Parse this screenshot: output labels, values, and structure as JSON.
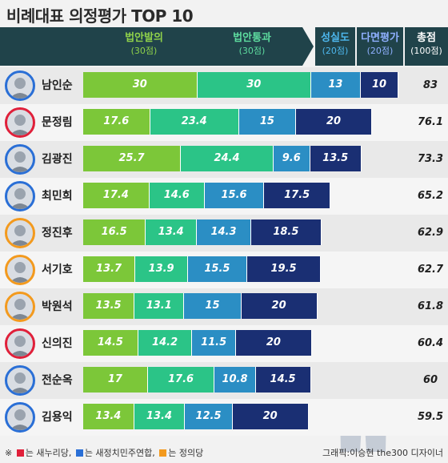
{
  "title": "비례대표 의정평가 TOP 10",
  "colors": {
    "header_dark": "#20434a",
    "c1": "#7cc739",
    "c2": "#2bc487",
    "c3": "#2b8ec4",
    "c4": "#1a2f73",
    "c1_text": "#8fd14a",
    "c2_text": "#5ddc9f",
    "c3_text": "#4db7ee",
    "c4_text": "#8fb0ff",
    "saenuri": "#e0203a",
    "npad": "#2a6fd6",
    "justice": "#f39a1e"
  },
  "chart_data": {
    "type": "bar",
    "stacked": true,
    "orientation": "horizontal",
    "title": "비례대표 의정평가 TOP 10",
    "columns": [
      {
        "key": "c1",
        "label": "법안발의",
        "sub": "(30점)",
        "max": 30
      },
      {
        "key": "c2",
        "label": "법안통과",
        "sub": "(30점)",
        "max": 30
      },
      {
        "key": "c3",
        "label": "성실도",
        "sub": "(20점)",
        "max": 20
      },
      {
        "key": "c4",
        "label": "다면평가",
        "sub": "(20점)",
        "max": 20
      }
    ],
    "total_label": "총점",
    "total_sub": "(100점)",
    "categories": [
      "남인순",
      "문정림",
      "김광진",
      "최민희",
      "정진후",
      "서기호",
      "박원석",
      "신의진",
      "전순옥",
      "김용익"
    ],
    "series": [
      {
        "name": "법안발의",
        "values": [
          30,
          17.6,
          25.7,
          17.4,
          16.5,
          13.7,
          13.5,
          14.5,
          17,
          13.4
        ]
      },
      {
        "name": "법안통과",
        "values": [
          30,
          23.4,
          24.4,
          14.6,
          13.4,
          13.9,
          13.1,
          14.2,
          17.6,
          13.4
        ]
      },
      {
        "name": "성실도",
        "values": [
          13,
          15,
          9.6,
          15.6,
          14.3,
          15.5,
          15,
          11.5,
          10.8,
          12.5
        ]
      },
      {
        "name": "다면평가",
        "values": [
          10,
          20,
          13.5,
          17.5,
          18.5,
          19.5,
          20,
          20,
          14.5,
          20
        ]
      }
    ],
    "totals": [
      "83",
      "76.1",
      "73.3",
      "65.2",
      "62.9",
      "62.7",
      "61.8",
      "60.4",
      "60",
      "59.5"
    ],
    "labels": [
      [
        "30",
        "30",
        "13",
        "10"
      ],
      [
        "17.6",
        "23.4",
        "15",
        "20"
      ],
      [
        "25.7",
        "24.4",
        "9.6",
        "13.5"
      ],
      [
        "17.4",
        "14.6",
        "15.6",
        "17.5"
      ],
      [
        "16.5",
        "13.4",
        "14.3",
        "18.5"
      ],
      [
        "13.7",
        "13.9",
        "15.5",
        "19.5"
      ],
      [
        "13.5",
        "13.1",
        "15",
        "20"
      ],
      [
        "14.5",
        "14.2",
        "11.5",
        "20"
      ],
      [
        "17",
        "17.6",
        "10.8",
        "14.5"
      ],
      [
        "13.4",
        "13.4",
        "12.5",
        "20"
      ]
    ],
    "party": [
      "npad",
      "saenuri",
      "npad",
      "npad",
      "justice",
      "justice",
      "justice",
      "saenuri",
      "npad",
      "npad"
    ]
  },
  "footer": {
    "note_prefix": "※",
    "note_saenuri": "는 새누리당,",
    "note_npad": "는 새정치민주연합,",
    "note_justice": "는 정의당",
    "credit": "그래픽:이승현 the300 디자이너"
  }
}
